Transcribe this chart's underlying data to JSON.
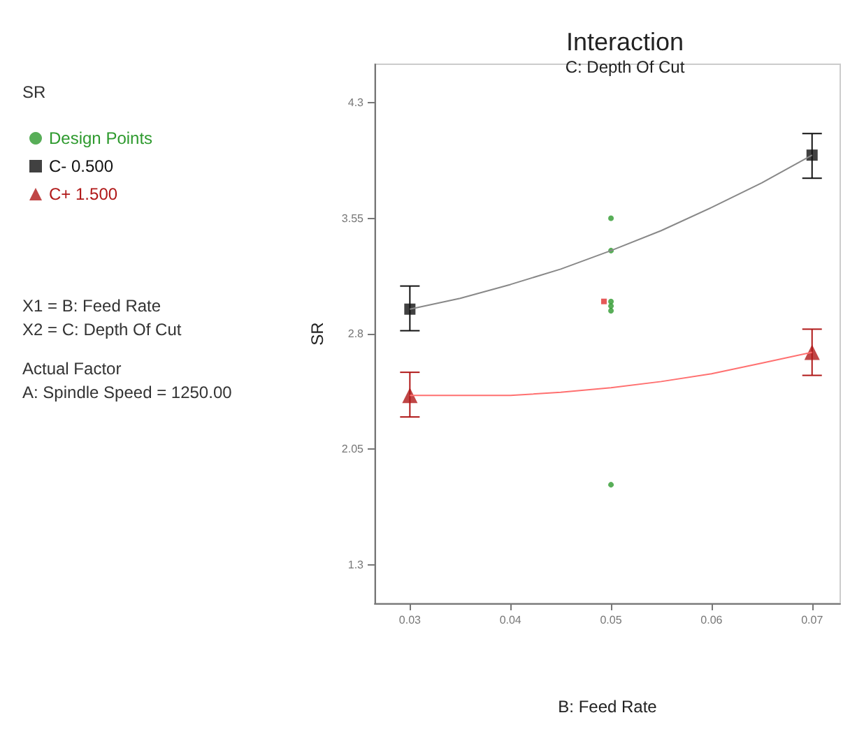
{
  "chart_data": {
    "type": "scatter",
    "title": "Interaction",
    "subtitle": "C: Depth Of Cut",
    "xlabel": "B: Feed Rate",
    "ylabel": "SR",
    "annotations": [
      "SR",
      "X1 = B: Feed Rate",
      "X2 = C: Depth Of Cut",
      "Actual Factor",
      "A: Spindle Speed = 1250.00"
    ],
    "xlim": [
      0.0265,
      0.0728
    ],
    "xticks": [
      0.03,
      0.04,
      0.05,
      0.06,
      0.07
    ],
    "ylim": [
      1.05,
      4.55
    ],
    "yticks": [
      1.3,
      2.05,
      2.8,
      3.55,
      4.3
    ],
    "grid": false,
    "legend": "left",
    "series": [
      {
        "name": "Design Points",
        "marker": "circle",
        "color": "#2e9a2e",
        "x": [
          0.05,
          0.05,
          0.05,
          0.05,
          0.05,
          0.05
        ],
        "values": [
          3.55,
          3.34,
          3.01,
          2.98,
          2.95,
          1.82
        ]
      },
      {
        "marker": "square",
        "color": "#e03030",
        "x": [
          0.0493
        ],
        "values": [
          3.01
        ]
      },
      {
        "type": "line",
        "marker": "none",
        "color": "#888888",
        "x": [
          0.03,
          0.035,
          0.04,
          0.045,
          0.05,
          0.055,
          0.06,
          0.065,
          0.07
        ],
        "values": [
          2.96,
          3.03,
          3.12,
          3.22,
          3.34,
          3.47,
          3.62,
          3.78,
          3.96
        ]
      },
      {
        "type": "line",
        "marker": "none",
        "color": "#ff7070",
        "x": [
          0.03,
          0.035,
          0.04,
          0.045,
          0.05,
          0.055,
          0.06,
          0.065,
          0.07
        ],
        "values": [
          2.4,
          2.4,
          2.4,
          2.42,
          2.45,
          2.49,
          2.54,
          2.61,
          2.68
        ]
      },
      {
        "name": "C- 0.500",
        "marker": "square",
        "color": "#111111",
        "x": [
          0.03,
          0.07
        ],
        "values": [
          2.96,
          3.96
        ],
        "errors": [
          [
            2.82,
            3.11
          ],
          [
            3.81,
            4.1
          ]
        ]
      },
      {
        "name": "C+ 1.500",
        "marker": "triangle",
        "color": "#b01818",
        "x": [
          0.03,
          0.07
        ],
        "values": [
          2.4,
          2.68
        ],
        "errors": [
          [
            2.26,
            2.55
          ],
          [
            2.53,
            2.83
          ]
        ]
      }
    ]
  }
}
